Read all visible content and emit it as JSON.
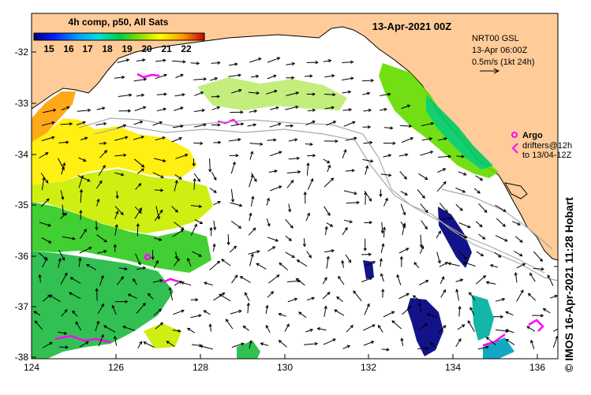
{
  "title": "13-Apr-2021 00Z",
  "colorbar": {
    "label": "4h comp, p50, All Sats",
    "ticks": [
      "15",
      "16",
      "17",
      "18",
      "19",
      "20",
      "21",
      "22"
    ]
  },
  "current_info": {
    "product": "NRT00 GSL",
    "time": "13-Apr 06:00Z",
    "scale": "0.5m/s (1kt 24h)"
  },
  "argo_legend": {
    "label": "Argo",
    "drifters_line1": "drifters@12h",
    "drifters_line2": "to 13/04-12Z"
  },
  "credit": "© IMOS 16-Apr-2021 11:28 Hobart",
  "axes": {
    "lon_ticks": [
      "124",
      "126",
      "128",
      "130",
      "132",
      "134",
      "136"
    ],
    "lat_ticks": [
      "-32",
      "-33",
      "-34",
      "-35",
      "-36",
      "-37",
      "-38"
    ]
  },
  "colors": {
    "land": "#ffcc99",
    "sst_cool": "#0000aa",
    "sst_warm": "#ff4400",
    "argo": "#ff00ff",
    "shelf_contour": "#aaaaaa"
  }
}
